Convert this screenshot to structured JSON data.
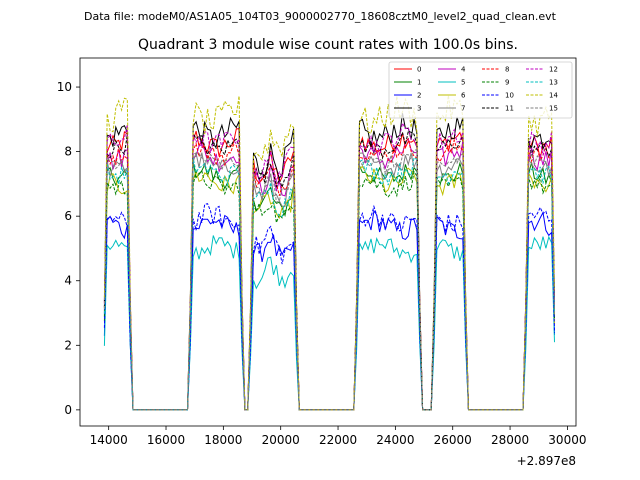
{
  "chart_data": {
    "type": "line",
    "suptitle": "Data file: modeM0/AS1A05_104T03_9000002770_18608cztM0_level2_quad_clean.evt",
    "title": "Quadrant 3 module wise count rates with 100.0s bins.",
    "xlabel": "",
    "ylabel": "",
    "x_offset_label": "+2.897e8",
    "xlim": [
      13000,
      30300
    ],
    "ylim": [
      -0.5,
      10.9
    ],
    "x_ticks": [
      14000,
      16000,
      18000,
      20000,
      22000,
      24000,
      26000,
      28000,
      30000
    ],
    "x_tick_labels": [
      "14000",
      "16000",
      "18000",
      "20000",
      "22000",
      "24000",
      "26000",
      "28000",
      "30000"
    ],
    "y_ticks": [
      0,
      2,
      4,
      6,
      8,
      10
    ],
    "y_tick_labels": [
      "0",
      "2",
      "4",
      "6",
      "8",
      "10"
    ],
    "legend_position": "top-right",
    "bin_size": 100,
    "active_intervals": [
      [
        13850,
        14750
      ],
      [
        16850,
        18650
      ],
      [
        18950,
        20550
      ],
      [
        22650,
        24850
      ],
      [
        25350,
        26450
      ],
      [
        28550,
        29550
      ]
    ],
    "series": [
      {
        "name": "0",
        "color": "#ff0000",
        "dashed": false,
        "level": 8.3,
        "amp": 0.35
      },
      {
        "name": "1",
        "color": "#008000",
        "dashed": false,
        "level": 7.3,
        "amp": 0.3
      },
      {
        "name": "2",
        "color": "#0000ff",
        "dashed": false,
        "level": 5.7,
        "amp": 0.35
      },
      {
        "name": "3",
        "color": "#000000",
        "dashed": false,
        "level": 8.6,
        "amp": 0.4
      },
      {
        "name": "4",
        "color": "#bf00bf",
        "dashed": false,
        "level": 7.9,
        "amp": 0.35
      },
      {
        "name": "5",
        "color": "#00bfbf",
        "dashed": false,
        "level": 5.0,
        "amp": 0.3
      },
      {
        "name": "6",
        "color": "#bfbf00",
        "dashed": false,
        "level": 7.1,
        "amp": 0.35
      },
      {
        "name": "7",
        "color": "#808080",
        "dashed": false,
        "level": 7.6,
        "amp": 0.3
      },
      {
        "name": "8",
        "color": "#ff0000",
        "dashed": true,
        "level": 8.0,
        "amp": 0.3
      },
      {
        "name": "9",
        "color": "#008000",
        "dashed": true,
        "level": 7.0,
        "amp": 0.3
      },
      {
        "name": "10",
        "color": "#0000ff",
        "dashed": true,
        "level": 5.9,
        "amp": 0.35
      },
      {
        "name": "11",
        "color": "#000000",
        "dashed": true,
        "level": 8.2,
        "amp": 0.3
      },
      {
        "name": "12",
        "color": "#bf00bf",
        "dashed": true,
        "level": 8.4,
        "amp": 0.35
      },
      {
        "name": "13",
        "color": "#00bfbf",
        "dashed": true,
        "level": 7.4,
        "amp": 0.3
      },
      {
        "name": "14",
        "color": "#bfbf00",
        "dashed": true,
        "level": 9.1,
        "amp": 0.45
      },
      {
        "name": "15",
        "color": "#808080",
        "dashed": true,
        "level": 7.7,
        "amp": 0.3
      }
    ]
  }
}
